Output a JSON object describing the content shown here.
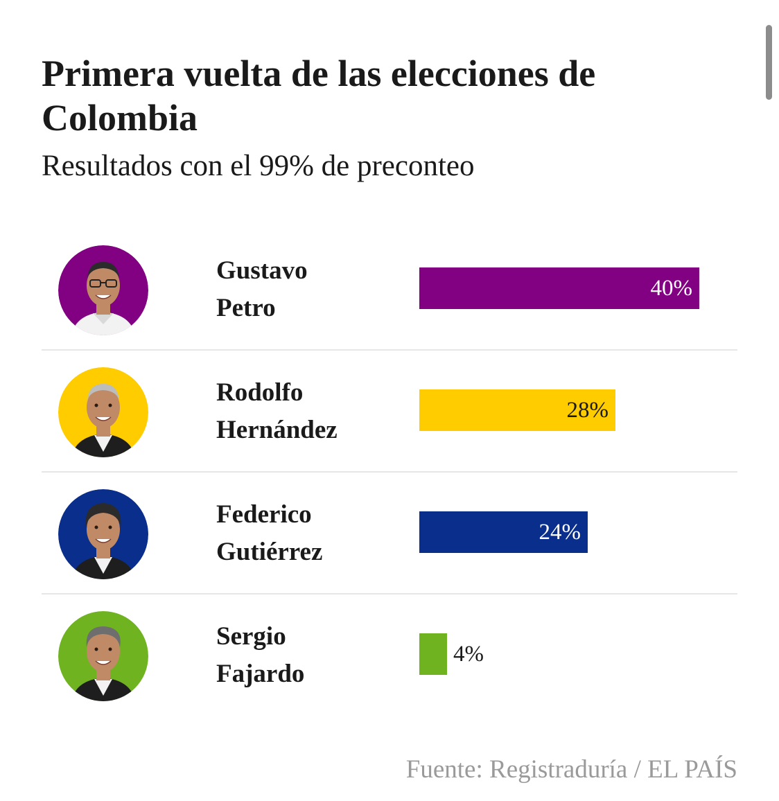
{
  "chart_data": {
    "type": "bar",
    "orientation": "horizontal",
    "title": "Primera vuelta de las elecciones de Colombia",
    "subtitle": "Resultados con el 99% de preconteo",
    "categories": [
      "Gustavo Petro",
      "Rodolfo Hernández",
      "Federico Gutiérrez",
      "Sergio Fajardo"
    ],
    "values": [
      40,
      28,
      24,
      4
    ],
    "value_labels": [
      "40%",
      "28%",
      "24%",
      "4%"
    ],
    "unit": "%",
    "xlim": [
      0,
      45
    ],
    "grid": false,
    "legend": "none",
    "source": "Fuente: Registraduría / EL PAÍS"
  },
  "candidates": [
    {
      "name_line1": "Gustavo",
      "name_line2": "Petro",
      "color": "#820082",
      "label_color": "#ffffff",
      "photo": "candidate-photo"
    },
    {
      "name_line1": "Rodolfo",
      "name_line2": "Hernández",
      "color": "#ffcc00",
      "label_color": "#1a1a1a",
      "photo": "candidate-photo"
    },
    {
      "name_line1": "Federico",
      "name_line2": "Gutiérrez",
      "color": "#0a2e8c",
      "label_color": "#ffffff",
      "photo": "candidate-photo"
    },
    {
      "name_line1": "Sergio",
      "name_line2": "Fajardo",
      "color": "#6fb321",
      "label_color": "#1a1a1a",
      "photo": "candidate-photo"
    }
  ],
  "colors": {
    "text": "#1a1a1a",
    "source_text": "#9a9a9a",
    "divider": "#e6e6e6",
    "skin": "#c08a66",
    "hair_dark": "#2b2b2b",
    "hair_gray": "#bdbdbd",
    "shirt": "#f2f2f2",
    "jacket": "#1e1e1e"
  }
}
